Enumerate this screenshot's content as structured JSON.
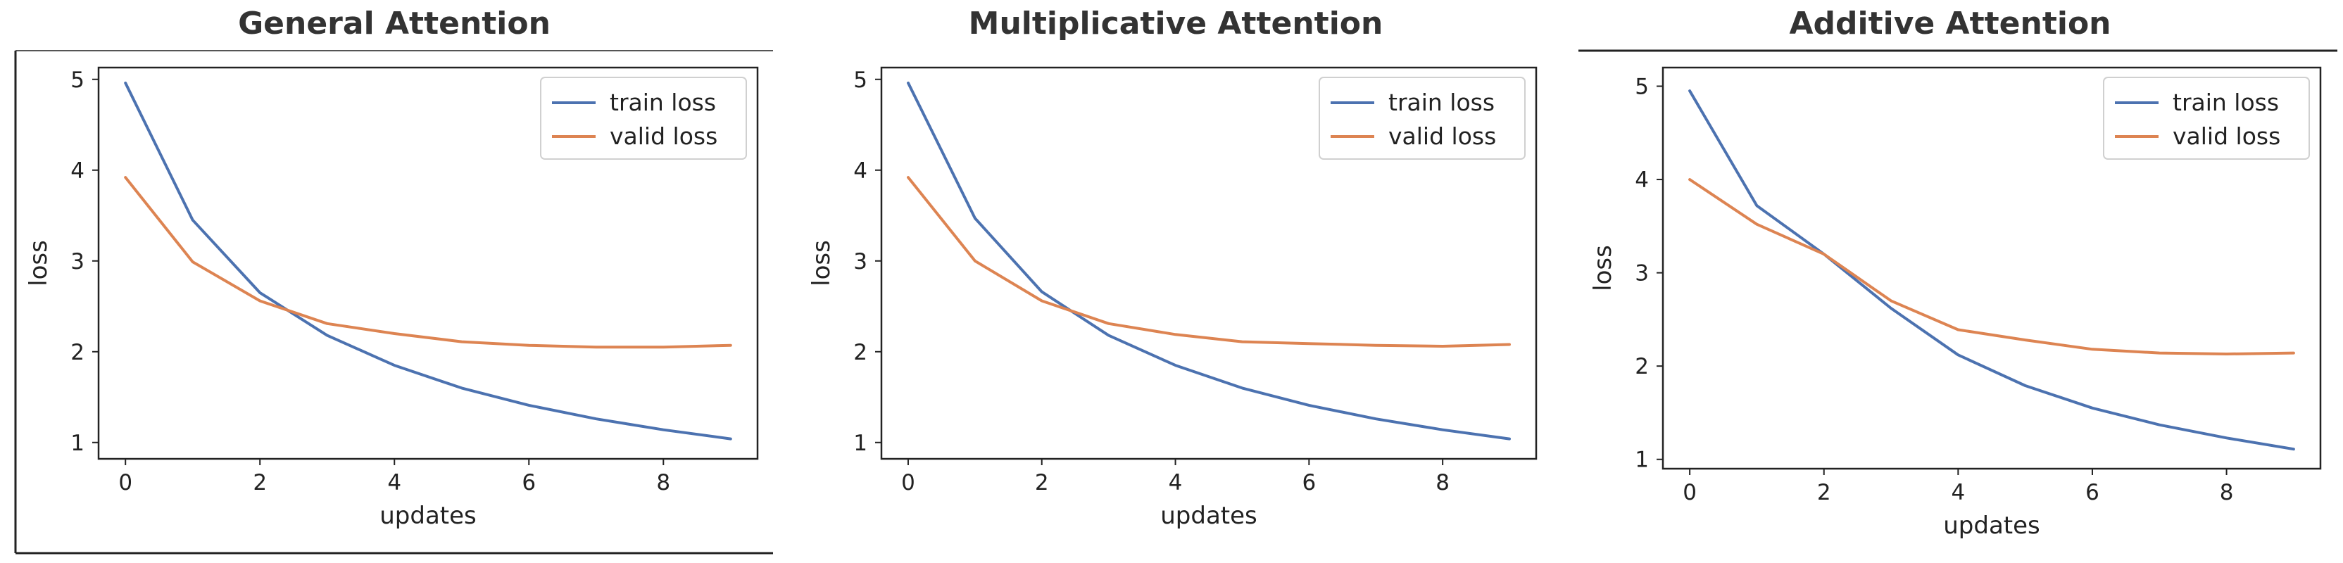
{
  "colors": {
    "train": "#4C72B0",
    "valid": "#DD8452",
    "frame": "#222222",
    "title": "#333333"
  },
  "chart_data": [
    {
      "type": "line",
      "title": "General Attention",
      "xlabel": "updates",
      "ylabel": "loss",
      "xlim": [
        -0.4,
        9.4
      ],
      "ylim": [
        0.82,
        5.13
      ],
      "xticks": [
        0,
        2,
        4,
        6,
        8
      ],
      "yticks": [
        1,
        2,
        3,
        4,
        5
      ],
      "legend_position": "top-right",
      "x": [
        0,
        1,
        2,
        3,
        4,
        5,
        6,
        7,
        8,
        9
      ],
      "series": [
        {
          "name": "train loss",
          "color": "#4C72B0",
          "values": [
            4.96,
            3.45,
            2.65,
            2.18,
            1.85,
            1.6,
            1.41,
            1.26,
            1.14,
            1.04
          ]
        },
        {
          "name": "valid loss",
          "color": "#DD8452",
          "values": [
            3.92,
            2.99,
            2.56,
            2.31,
            2.2,
            2.11,
            2.07,
            2.05,
            2.05,
            2.07
          ]
        }
      ]
    },
    {
      "type": "line",
      "title": "Multiplicative Attention",
      "xlabel": "updates",
      "ylabel": "loss",
      "xlim": [
        -0.4,
        9.4
      ],
      "ylim": [
        0.82,
        5.13
      ],
      "xticks": [
        0,
        2,
        4,
        6,
        8
      ],
      "yticks": [
        1,
        2,
        3,
        4,
        5
      ],
      "legend_position": "top-right",
      "x": [
        0,
        1,
        2,
        3,
        4,
        5,
        6,
        7,
        8,
        9
      ],
      "series": [
        {
          "name": "train loss",
          "color": "#4C72B0",
          "values": [
            4.96,
            3.47,
            2.66,
            2.18,
            1.85,
            1.6,
            1.41,
            1.26,
            1.14,
            1.04
          ]
        },
        {
          "name": "valid loss",
          "color": "#DD8452",
          "values": [
            3.92,
            3.0,
            2.56,
            2.31,
            2.19,
            2.11,
            2.09,
            2.07,
            2.06,
            2.08
          ]
        }
      ]
    },
    {
      "type": "line",
      "title": "Additive Attention",
      "xlabel": "updates",
      "ylabel": "loss",
      "xlim": [
        -0.4,
        9.4
      ],
      "ylim": [
        0.9,
        5.2
      ],
      "xticks": [
        0,
        2,
        4,
        6,
        8
      ],
      "yticks": [
        1,
        2,
        3,
        4,
        5
      ],
      "legend_position": "top-right",
      "x": [
        0,
        1,
        2,
        3,
        4,
        5,
        6,
        7,
        8,
        9
      ],
      "series": [
        {
          "name": "train loss",
          "color": "#4C72B0",
          "values": [
            4.95,
            3.72,
            3.2,
            2.62,
            2.12,
            1.79,
            1.55,
            1.37,
            1.23,
            1.11
          ]
        },
        {
          "name": "valid loss",
          "color": "#DD8452",
          "values": [
            4.0,
            3.52,
            3.2,
            2.7,
            2.39,
            2.28,
            2.18,
            2.14,
            2.13,
            2.14
          ]
        }
      ]
    }
  ]
}
